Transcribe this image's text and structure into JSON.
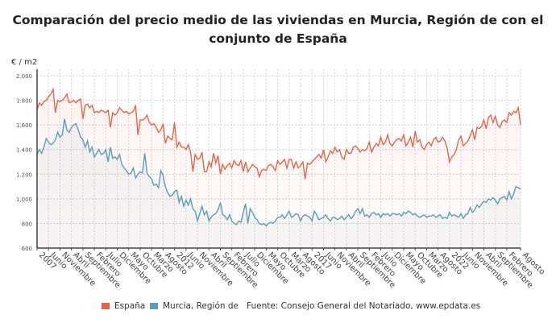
{
  "chart_data": {
    "type": "line",
    "title": "Comparación del precio medio de las viviendas en Murcia, Región de con el conjunto de España",
    "ylabel": "€ / m2",
    "xlabel": "",
    "ylim": [
      600,
      2000
    ],
    "yticks": [
      "600",
      "800",
      "1.000",
      "1.200",
      "1.400",
      "1.600",
      "1.800",
      "2.000"
    ],
    "ytick_values": [
      600,
      800,
      1000,
      1200,
      1400,
      1600,
      1800,
      2000
    ],
    "x_start": "2007-01",
    "x_end": "2024-08",
    "x_frequency": "monthly",
    "xtick_labels": [
      "2007",
      "Junio",
      "Noviembre",
      "Abril",
      "Septiembre",
      "Febrero",
      "Julio",
      "Diciembre",
      "Mayo",
      "Octubre",
      "Marzo",
      "Agosto",
      "2012",
      "Junio",
      "Noviembre",
      "Abril",
      "Septiembre",
      "Febrero",
      "Julio",
      "Diciembre",
      "Mayo",
      "Octubre",
      "Marzo",
      "Agosto",
      "2017",
      "Junio",
      "Noviembre",
      "Abril",
      "Septiembre",
      "Febrero",
      "Julio",
      "Diciembre",
      "Mayo",
      "Octubre",
      "Marzo",
      "Agosto",
      "2022",
      "Junio",
      "Noviembre",
      "Abril",
      "Septiembre",
      "Febrero",
      "Agosto"
    ],
    "grid": true,
    "legend_position": "bottom",
    "source": "Fuente: Consejo General del Notariado, www.epdata.es",
    "series": [
      {
        "name": "España",
        "color": "#e2674a",
        "values": [
          1720,
          1780,
          1760,
          1790,
          1800,
          1830,
          1850,
          1890,
          1700,
          1800,
          1790,
          1800,
          1820,
          1850,
          1780,
          1790,
          1800,
          1780,
          1800,
          1810,
          1650,
          1760,
          1770,
          1740,
          1760,
          1700,
          1710,
          1700,
          1720,
          1710,
          1700,
          1720,
          1580,
          1700,
          1680,
          1700,
          1740,
          1720,
          1700,
          1710,
          1690,
          1700,
          1710,
          1760,
          1520,
          1640,
          1640,
          1650,
          1680,
          1620,
          1600,
          1610,
          1580,
          1540,
          1560,
          1610,
          1450,
          1510,
          1490,
          1480,
          1620,
          1420,
          1460,
          1420,
          1420,
          1400,
          1440,
          1380,
          1220,
          1360,
          1320,
          1330,
          1380,
          1220,
          1220,
          1300,
          1260,
          1370,
          1290,
          1350,
          1200,
          1280,
          1240,
          1270,
          1290,
          1250,
          1310,
          1280,
          1270,
          1310,
          1220,
          1300,
          1220,
          1250,
          1280,
          1260,
          1250,
          1180,
          1230,
          1240,
          1230,
          1270,
          1280,
          1260,
          1230,
          1310,
          1280,
          1300,
          1320,
          1250,
          1320,
          1320,
          1250,
          1300,
          1250,
          1270,
          1300,
          1160,
          1290,
          1280,
          1300,
          1320,
          1340,
          1360,
          1330,
          1400,
          1300,
          1340,
          1390,
          1370,
          1420,
          1380,
          1400,
          1340,
          1320,
          1400,
          1370,
          1370,
          1420,
          1430,
          1410,
          1380,
          1400,
          1390,
          1410,
          1460,
          1380,
          1420,
          1450,
          1430,
          1500,
          1440,
          1460,
          1520,
          1450,
          1430,
          1460,
          1480,
          1490,
          1470,
          1520,
          1430,
          1460,
          1500,
          1420,
          1550,
          1460,
          1480,
          1420,
          1400,
          1440,
          1460,
          1430,
          1480,
          1500,
          1460,
          1470,
          1500,
          1470,
          1410,
          1300,
          1340,
          1360,
          1400,
          1480,
          1510,
          1430,
          1450,
          1470,
          1510,
          1560,
          1480,
          1580,
          1570,
          1590,
          1640,
          1570,
          1660,
          1680,
          1620,
          1670,
          1600,
          1580,
          1630,
          1640,
          1620,
          1700,
          1680,
          1710,
          1700,
          1740,
          1600
        ]
      },
      {
        "name": "Murcia, Región de",
        "color": "#5b9dbd",
        "values": [
          1360,
          1400,
          1370,
          1420,
          1490,
          1460,
          1440,
          1450,
          1480,
          1540,
          1500,
          1520,
          1650,
          1560,
          1540,
          1580,
          1600,
          1610,
          1560,
          1500,
          1480,
          1420,
          1470,
          1380,
          1420,
          1340,
          1370,
          1400,
          1360,
          1370,
          1400,
          1300,
          1420,
          1330,
          1340,
          1320,
          1360,
          1280,
          1250,
          1230,
          1200,
          1210,
          1250,
          1170,
          1200,
          1220,
          1210,
          1370,
          1210,
          1180,
          1160,
          1110,
          1120,
          1090,
          1230,
          1190,
          1100,
          1050,
          1020,
          1030,
          1060,
          1070,
          970,
          1020,
          940,
          990,
          950,
          1000,
          920,
          900,
          820,
          880,
          940,
          870,
          900,
          820,
          850,
          870,
          880,
          910,
          970,
          870,
          860,
          830,
          870,
          820,
          800,
          790,
          820,
          810,
          890,
          960,
          800,
          920,
          890,
          850,
          830,
          800,
          790,
          800,
          780,
          800,
          810,
          800,
          820,
          850,
          850,
          870,
          840,
          870,
          900,
          850,
          860,
          880,
          870,
          820,
          860,
          870,
          860,
          850,
          820,
          900,
          870,
          830,
          840,
          850,
          870,
          840,
          820,
          850,
          850,
          830,
          840,
          860,
          830,
          850,
          870,
          840,
          860,
          900,
          920,
          880,
          920,
          860,
          870,
          850,
          880,
          890,
          870,
          880,
          850,
          880,
          870,
          880,
          860,
          880,
          880,
          870,
          880,
          860,
          890,
          880,
          900,
          890,
          870,
          880,
          860,
          850,
          860,
          870,
          850,
          860,
          860,
          870,
          850,
          860,
          870,
          840,
          850,
          840,
          890,
          860,
          870,
          860,
          850,
          880,
          840,
          870,
          880,
          930,
          890,
          910,
          950,
          930,
          960,
          980,
          970,
          1000,
          990,
          1010,
          990,
          960,
          1000,
          1010,
          1020,
          990,
          1060,
          1000,
          1040,
          1100,
          1090,
          1080
        ]
      }
    ]
  }
}
